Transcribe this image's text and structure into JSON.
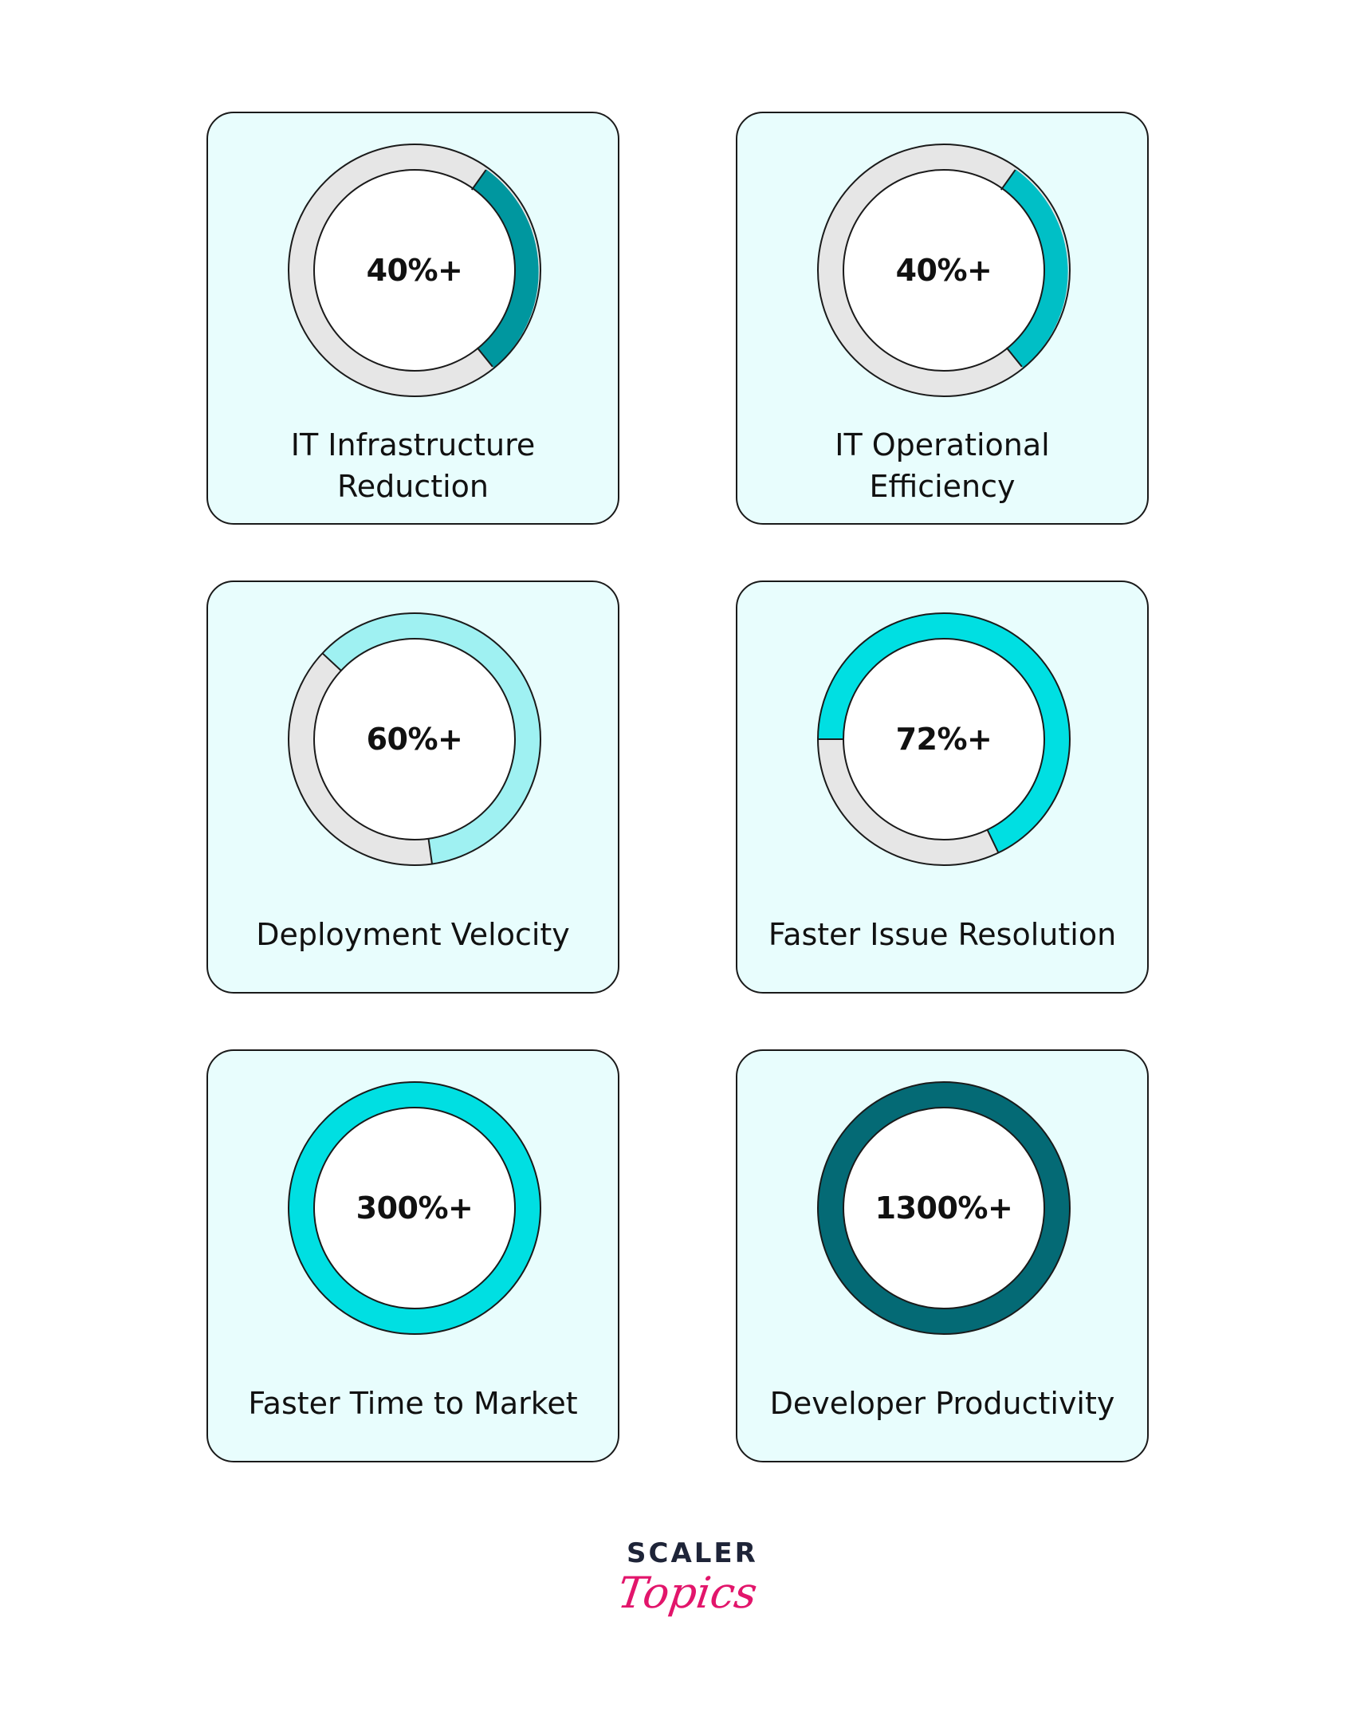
{
  "chart_data": [
    {
      "type": "pie",
      "label": "IT Infrastructure Reduction",
      "label_lines": [
        "IT Infrastructure",
        "Reduction"
      ],
      "value_text": "40%+",
      "highlight_color": "#00979f",
      "track_color": "#e6e6e6"
    },
    {
      "type": "pie",
      "label": "IT Operational Efficiency",
      "label_lines": [
        "IT Operational",
        "Efficiency"
      ],
      "value_text": "40%+",
      "highlight_color": "#00bfc6",
      "track_color": "#e6e6e6"
    },
    {
      "type": "pie",
      "label": "Deployment Velocity",
      "label_lines": [
        "Deployment Velocity"
      ],
      "value_text": "60%+",
      "highlight_color": "#9ff1f2",
      "track_color": "#e6e6e6"
    },
    {
      "type": "pie",
      "label": "Faster Issue Resolution",
      "label_lines": [
        "Faster Issue Resolution"
      ],
      "value_text": "72%+",
      "highlight_color": "#00dfe2",
      "track_color": "#e6e6e6"
    },
    {
      "type": "pie",
      "label": "Faster Time to Market",
      "label_lines": [
        "Faster Time to Market"
      ],
      "value_text": "300%+",
      "highlight_color": "#00dfe2",
      "track_color": "#e6e6e6"
    },
    {
      "type": "pie",
      "label": "Developer Productivity",
      "label_lines": [
        "Developer Productivity"
      ],
      "value_text": "1300%+",
      "highlight_color": "#046a75",
      "track_color": "#e6e6e6"
    }
  ],
  "logo": {
    "line1": "SCALER",
    "line2": "Topics"
  },
  "colors": {
    "card_bg": "#e8fdfd",
    "border": "#1a1a1a",
    "logo_dark": "#1e2438",
    "logo_pink": "#e2156b"
  }
}
